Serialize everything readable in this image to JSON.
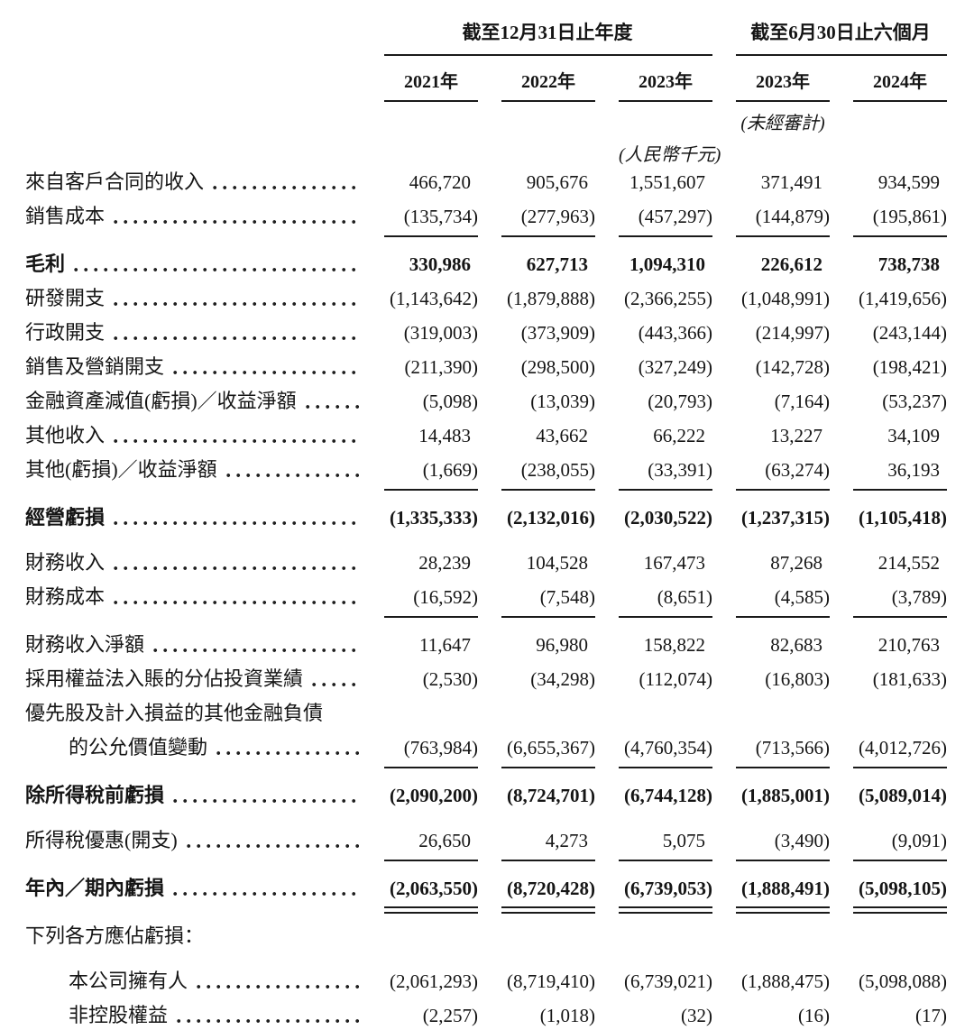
{
  "page": {
    "background": "#ffffff",
    "text_color": "#151515",
    "rule_color": "#1a1a1a"
  },
  "table": {
    "col_groups": [
      {
        "label": "截至12月31日止年度",
        "span": 3
      },
      {
        "label": "截至6月30日止六個月",
        "span": 2
      }
    ],
    "columns": [
      "2021年",
      "2022年",
      "2023年",
      "2023年",
      "2024年"
    ],
    "unaudited_note": "(未經審計)",
    "unit_note": "(人民幣千元)",
    "rows": [
      {
        "label": "來自客戶合同的收入",
        "leaders": true,
        "values": [
          "466,720",
          "905,676",
          "1,551,607",
          "371,491",
          "934,599"
        ]
      },
      {
        "label": "銷售成本",
        "leaders": true,
        "rule": "single",
        "values": [
          "(135,734)",
          "(277,963)",
          "(457,297)",
          "(144,879)",
          "(195,861)"
        ]
      },
      {
        "label": "毛利",
        "bold": true,
        "leaders": true,
        "gap_top": true,
        "values": [
          "330,986",
          "627,713",
          "1,094,310",
          "226,612",
          "738,738"
        ]
      },
      {
        "label": "研發開支",
        "leaders": true,
        "values": [
          "(1,143,642)",
          "(1,879,888)",
          "(2,366,255)",
          "(1,048,991)",
          "(1,419,656)"
        ]
      },
      {
        "label": "行政開支",
        "leaders": true,
        "values": [
          "(319,003)",
          "(373,909)",
          "(443,366)",
          "(214,997)",
          "(243,144)"
        ]
      },
      {
        "label": "銷售及營銷開支",
        "leaders": true,
        "values": [
          "(211,390)",
          "(298,500)",
          "(327,249)",
          "(142,728)",
          "(198,421)"
        ]
      },
      {
        "label": "金融資產減值(虧損)／收益淨額",
        "leaders": true,
        "values": [
          "(5,098)",
          "(13,039)",
          "(20,793)",
          "(7,164)",
          "(53,237)"
        ]
      },
      {
        "label": "其他收入",
        "leaders": true,
        "values": [
          "14,483",
          "43,662",
          "66,222",
          "13,227",
          "34,109"
        ]
      },
      {
        "label": "其他(虧損)／收益淨額",
        "leaders": true,
        "rule": "single",
        "values": [
          "(1,669)",
          "(238,055)",
          "(33,391)",
          "(63,274)",
          "36,193"
        ]
      },
      {
        "label": "經營虧損",
        "bold": true,
        "leaders": true,
        "gap_top": true,
        "values": [
          "(1,335,333)",
          "(2,132,016)",
          "(2,030,522)",
          "(1,237,315)",
          "(1,105,418)"
        ]
      },
      {
        "label": "財務收入",
        "leaders": true,
        "gap_top": true,
        "values": [
          "28,239",
          "104,528",
          "167,473",
          "87,268",
          "214,552"
        ]
      },
      {
        "label": "財務成本",
        "leaders": true,
        "rule": "single",
        "values": [
          "(16,592)",
          "(7,548)",
          "(8,651)",
          "(4,585)",
          "(3,789)"
        ]
      },
      {
        "label": "財務收入淨額",
        "leaders": true,
        "gap_top": true,
        "values": [
          "11,647",
          "96,980",
          "158,822",
          "82,683",
          "210,763"
        ]
      },
      {
        "label": "採用權益法入賬的分佔投資業績",
        "leaders": true,
        "values": [
          "(2,530)",
          "(34,298)",
          "(112,074)",
          "(16,803)",
          "(181,633)"
        ]
      },
      {
        "label": "優先股及計入損益的其他金融負債",
        "leaders": false,
        "values": null
      },
      {
        "label": "的公允價值變動",
        "leaders": true,
        "indent": true,
        "rule": "single",
        "values": [
          "(763,984)",
          "(6,655,367)",
          "(4,760,354)",
          "(713,566)",
          "(4,012,726)"
        ]
      },
      {
        "label": "除所得稅前虧損",
        "bold": true,
        "leaders": true,
        "gap_top": true,
        "values": [
          "(2,090,200)",
          "(8,724,701)",
          "(6,744,128)",
          "(1,885,001)",
          "(5,089,014)"
        ]
      },
      {
        "label": "所得稅優惠(開支)",
        "leaders": true,
        "rule": "single",
        "gap_top": true,
        "values": [
          "26,650",
          "4,273",
          "5,075",
          "(3,490)",
          "(9,091)"
        ]
      },
      {
        "label": "年內／期內虧損",
        "bold": true,
        "leaders": true,
        "rule": "double",
        "gap_top": true,
        "values": [
          "(2,063,550)",
          "(8,720,428)",
          "(6,739,053)",
          "(1,888,491)",
          "(5,098,105)"
        ]
      },
      {
        "label": "下列各方應佔虧損：",
        "leaders": false,
        "gap_top": true,
        "values": null
      },
      {
        "label": "本公司擁有人",
        "leaders": true,
        "indent": true,
        "gap_top": true,
        "values": [
          "(2,061,293)",
          "(8,719,410)",
          "(6,739,021)",
          "(1,888,475)",
          "(5,098,088)"
        ]
      },
      {
        "label": "非控股權益",
        "leaders": true,
        "indent": true,
        "values": [
          "(2,257)",
          "(1,018)",
          "(32)",
          "(16)",
          "(17)"
        ]
      }
    ]
  }
}
